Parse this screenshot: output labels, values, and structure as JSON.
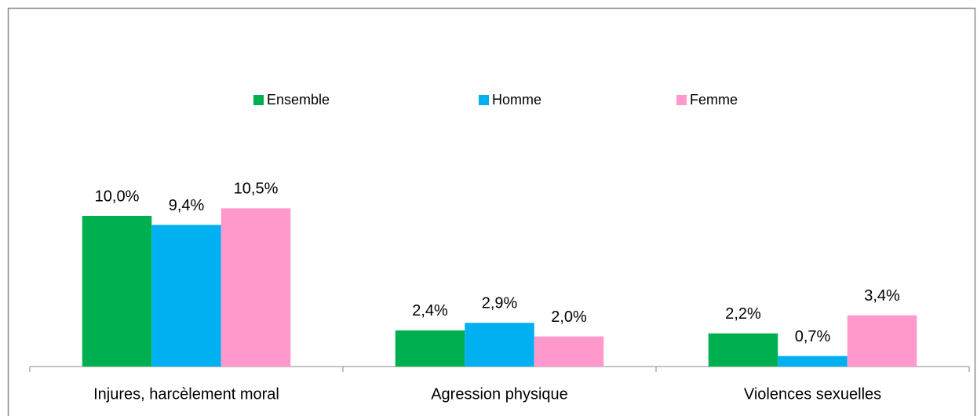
{
  "chart_data": {
    "type": "bar",
    "categories": [
      "Injures, harcèlement moral",
      "Agression physique",
      "Violences sexuelles"
    ],
    "series": [
      {
        "name": "Ensemble",
        "color": "#00b050",
        "values": [
          10.0,
          2.4,
          2.2
        ],
        "value_labels": [
          "10,0%",
          "2,4%",
          "2,2%"
        ]
      },
      {
        "name": "Homme",
        "color": "#00b0f0",
        "values": [
          9.4,
          2.9,
          0.7
        ],
        "value_labels": [
          "9,4%",
          "2,9%",
          "0,7%"
        ]
      },
      {
        "name": "Femme",
        "color": "#ff99cc",
        "values": [
          10.5,
          2.0,
          3.4
        ],
        "value_labels": [
          "10,5%",
          "2,0%",
          "3,4%"
        ]
      }
    ],
    "legend": "top"
  }
}
